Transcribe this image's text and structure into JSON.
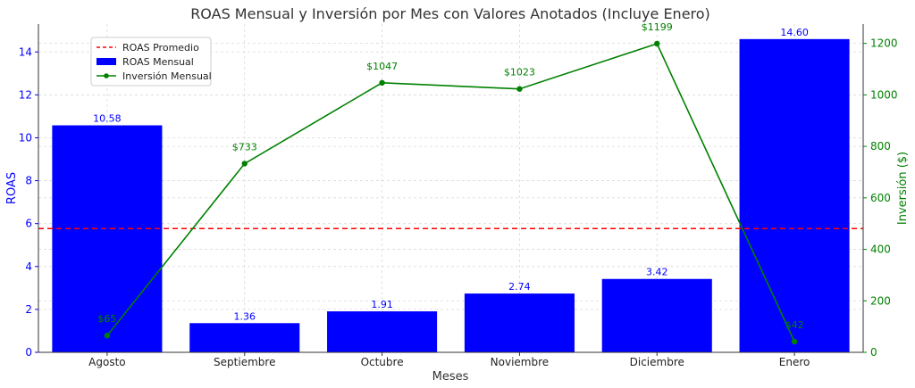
{
  "chart_data": {
    "type": "bar+line",
    "title": "ROAS Mensual y Inversión por Mes con Valores Anotados (Incluye Enero)",
    "xlabel": "Meses",
    "ylabel_left": "ROAS",
    "ylabel_right": "Inversión ($)",
    "categories": [
      "Agosto",
      "Septiembre",
      "Octubre",
      "Noviembre",
      "Diciembre",
      "Enero"
    ],
    "ylim_left": [
      0,
      15.3
    ],
    "ylim_right": [
      0,
      1275
    ],
    "yticks_left": [
      0,
      2,
      4,
      6,
      8,
      10,
      12,
      14
    ],
    "yticks_right": [
      0,
      200,
      400,
      600,
      800,
      1000,
      1200
    ],
    "grid": true,
    "legend_placement": "upper-left",
    "average_roas": 5.77,
    "series": [
      {
        "name": "ROAS Mensual",
        "kind": "bar",
        "axis": "left",
        "color": "#0000ff",
        "values": [
          10.58,
          1.36,
          1.91,
          2.74,
          3.42,
          14.6
        ],
        "labels": [
          "10.58",
          "1.36",
          "1.91",
          "2.74",
          "3.42",
          "14.60"
        ]
      },
      {
        "name": "Inversión Mensual",
        "kind": "line",
        "axis": "right",
        "color": "#008000",
        "values": [
          65,
          733,
          1047,
          1023,
          1199,
          42
        ],
        "labels": [
          "$65",
          "$733",
          "$1047",
          "$1023",
          "$1199",
          "$42"
        ]
      },
      {
        "name": "ROAS Promedio",
        "kind": "hline",
        "axis": "left",
        "color": "#ff0000"
      }
    ]
  }
}
